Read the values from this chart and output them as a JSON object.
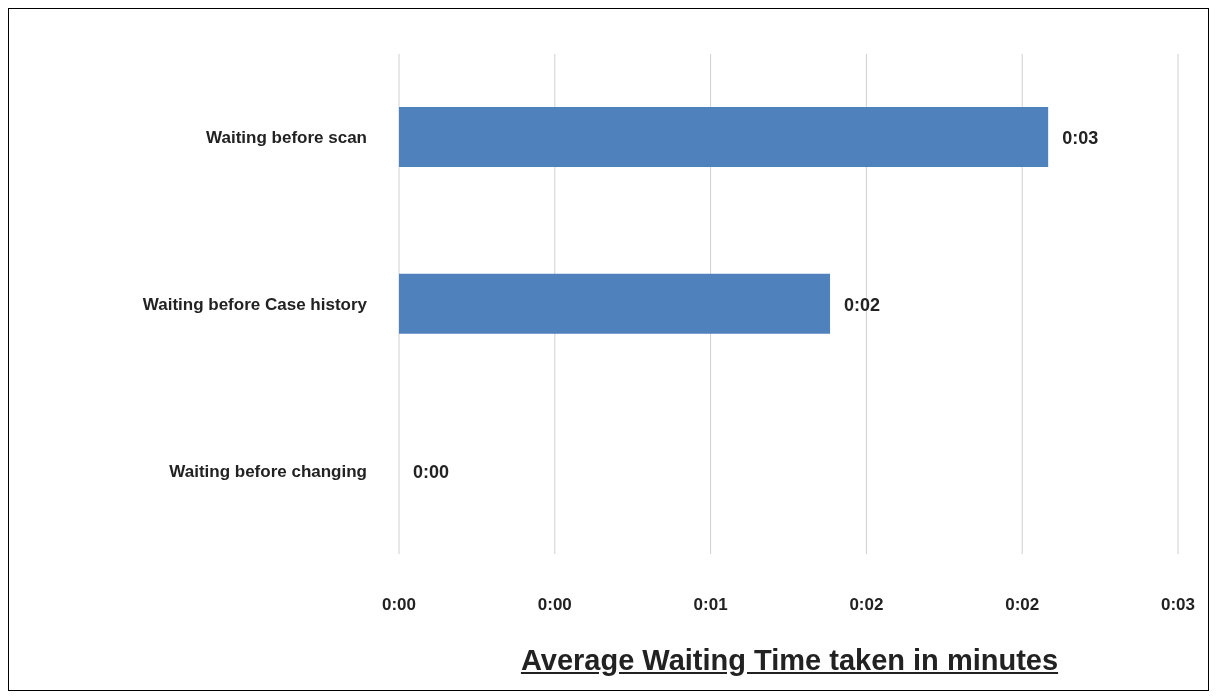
{
  "chart_data": {
    "type": "bar",
    "orientation": "horizontal",
    "xlabel": "Average Waiting Time taken in minutes",
    "categories": [
      "Waiting before scan",
      "Waiting before Case history",
      "Waiting before changing"
    ],
    "values": [
      2.5,
      1.66,
      0
    ],
    "value_labels": [
      "0:03",
      "0:02",
      "0:00"
    ],
    "color": "#4f81bd",
    "xlim": [
      0,
      3
    ],
    "xticks": [
      {
        "value": 0,
        "label": "0:00"
      },
      {
        "value": 0.6,
        "label": "0:00"
      },
      {
        "value": 1.2,
        "label": "0:01"
      },
      {
        "value": 1.8,
        "label": "0:02"
      },
      {
        "value": 2.4,
        "label": "0:02"
      },
      {
        "value": 3,
        "label": "0:03"
      }
    ],
    "grid": "x"
  }
}
